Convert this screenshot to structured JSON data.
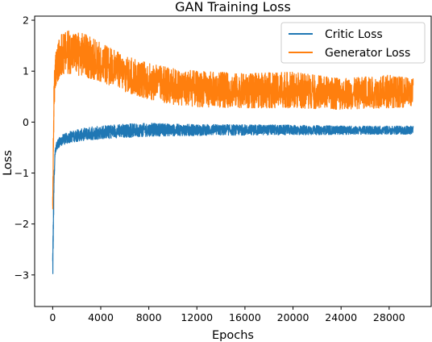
{
  "chart_data": {
    "type": "line",
    "title": "GAN Training Loss",
    "xlabel": "Epochs",
    "ylabel": "Loss",
    "xlim": [
      -1500,
      31500
    ],
    "ylim": [
      -3.62,
      2.08
    ],
    "x_ticks": [
      0,
      4000,
      8000,
      12000,
      16000,
      20000,
      24000,
      28000
    ],
    "x_tick_labels": [
      "0",
      "4000",
      "8000",
      "12000",
      "16000",
      "20000",
      "24000",
      "28000"
    ],
    "y_ticks": [
      -3,
      -2,
      -1,
      0,
      1,
      2
    ],
    "y_tick_labels": [
      "−3",
      "−2",
      "−1",
      "0",
      "1",
      "2"
    ],
    "grid": false,
    "legend": "top-right",
    "x_max_epoch": 30000,
    "series": [
      {
        "name": "Critic Loss",
        "color": "#1f77b4",
        "envelope": {
          "x": [
            0,
            50,
            120,
            200,
            300,
            500,
            800,
            1500,
            3000,
            6000,
            8000,
            10000,
            14000,
            20000,
            25000,
            30000
          ],
          "low": [
            -3.45,
            -2.4,
            -1.2,
            -0.65,
            -0.55,
            -0.5,
            -0.45,
            -0.4,
            -0.35,
            -0.3,
            -0.28,
            -0.27,
            -0.26,
            -0.25,
            -0.24,
            -0.24
          ],
          "high": [
            -2.35,
            -1.9,
            -0.9,
            -0.55,
            -0.4,
            -0.32,
            -0.25,
            -0.18,
            -0.1,
            -0.04,
            -0.02,
            -0.04,
            -0.05,
            -0.06,
            -0.08,
            -0.08
          ]
        }
      },
      {
        "name": "Generator Loss",
        "color": "#ff7f0e",
        "envelope": {
          "x": [
            0,
            50,
            120,
            200,
            300,
            500,
            800,
            1500,
            2500,
            4000,
            6000,
            8000,
            10000,
            12000,
            16000,
            20000,
            24000,
            28000,
            30000
          ],
          "low": [
            -1.95,
            -0.8,
            0.25,
            0.55,
            0.75,
            0.85,
            0.95,
            0.95,
            0.9,
            0.8,
            0.6,
            0.45,
            0.35,
            0.3,
            0.28,
            0.28,
            0.25,
            0.28,
            0.3
          ],
          "high": [
            -1.6,
            -0.2,
            0.9,
            1.2,
            1.45,
            1.6,
            1.75,
            1.8,
            1.75,
            1.55,
            1.3,
            1.15,
            1.05,
            1.0,
            0.95,
            0.98,
            0.85,
            0.92,
            0.85
          ]
        }
      }
    ]
  }
}
